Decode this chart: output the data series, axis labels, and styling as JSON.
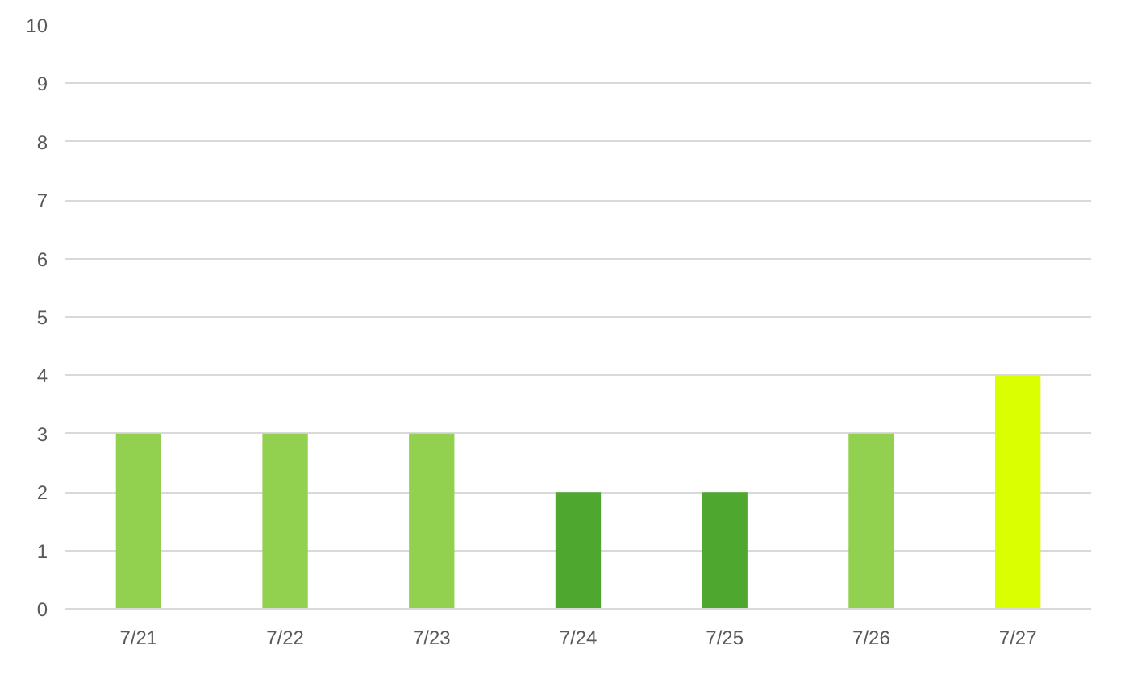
{
  "chart_data": {
    "type": "bar",
    "categories": [
      "7/21",
      "7/22",
      "7/23",
      "7/24",
      "7/25",
      "7/26",
      "7/27"
    ],
    "values": [
      3,
      3,
      3,
      2,
      2,
      3,
      4
    ],
    "colors": [
      "#92d050",
      "#92d050",
      "#92d050",
      "#4ea72e",
      "#4ea72e",
      "#92d050",
      "#d9ff00"
    ],
    "ylim": [
      0,
      10
    ],
    "yticks": [
      0,
      1,
      2,
      3,
      4,
      5,
      6,
      7,
      8,
      9,
      10
    ],
    "grid": "y"
  }
}
